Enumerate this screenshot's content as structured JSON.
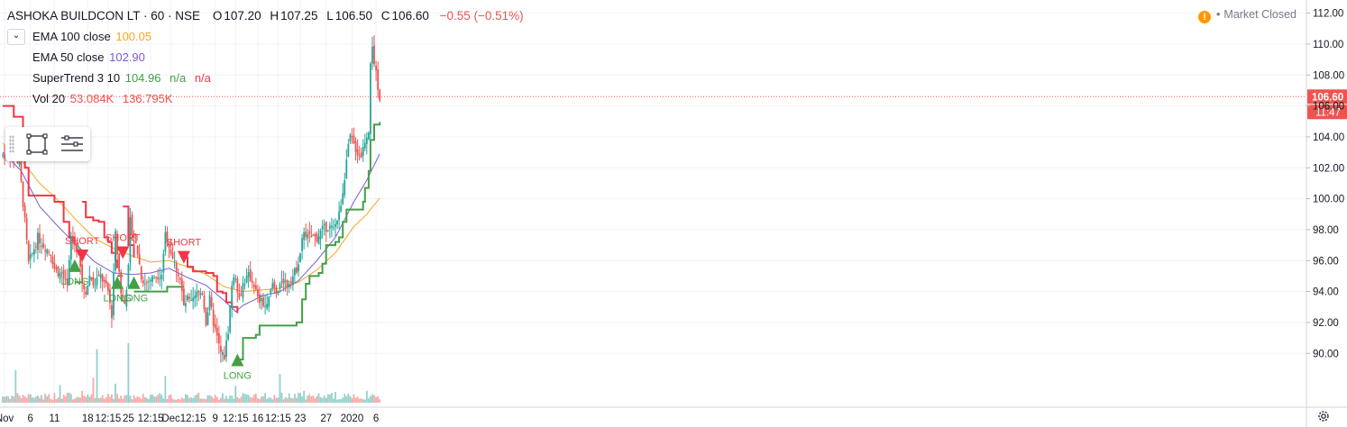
{
  "header": {
    "symbol": "ASHOKA BUILDCON LT · 60 · NSE",
    "open_label": "O",
    "open": "107.20",
    "high_label": "H",
    "high": "107.25",
    "low_label": "L",
    "low": "106.50",
    "close_label": "C",
    "close": "106.60",
    "change": "−0.55 (−0.51%)"
  },
  "indicators": {
    "ema100": {
      "label": "EMA 100 close",
      "value": "100.05",
      "color": "#f5a623"
    },
    "ema50": {
      "label": "EMA 50 close",
      "value": "102.90",
      "color": "#7b5bd6"
    },
    "supertrend": {
      "label": "SuperTrend 3 10",
      "value": "104.96",
      "na1": "n/a",
      "na2": "n/a",
      "color_up": "#43a047",
      "color_down": "#f23645"
    },
    "volume": {
      "label": "Vol 20",
      "value": "53.084K",
      "ma": "136.795K",
      "color_up": "#26a69a",
      "color_down": "#ef5350"
    }
  },
  "status": {
    "warning_icon": "!",
    "separator": "•",
    "text": "Market Closed"
  },
  "price_scale": {
    "last_price": "106.60",
    "countdown": "11:47",
    "colors": {
      "up": "#26a69a",
      "down": "#ef5350",
      "last": "#ef5350"
    }
  },
  "icons": {
    "collapse": "chevron-down-icon",
    "rect_tool": "rectangle-icon",
    "lines_tool": "menu-lines-icon",
    "settings": "gear-icon",
    "warning": "warning-icon"
  },
  "chart_data": {
    "type": "candlestick",
    "title": "ASHOKA BUILDCON LT · 60 · NSE",
    "ylim": [
      88.5,
      112.5
    ],
    "y_ticks": [
      {
        "value": 90,
        "label": "90.00"
      },
      {
        "value": 92,
        "label": "92.00"
      },
      {
        "value": 94,
        "label": "94.00"
      },
      {
        "value": 96,
        "label": "96.00"
      },
      {
        "value": 98,
        "label": "98.00"
      },
      {
        "value": 100,
        "label": "100.00"
      },
      {
        "value": 102,
        "label": "102.00"
      },
      {
        "value": 104,
        "label": "104.00"
      },
      {
        "value": 106,
        "label": "106.00"
      },
      {
        "value": 108,
        "label": "108.00"
      },
      {
        "value": 110,
        "label": "110.00"
      },
      {
        "value": 112,
        "label": "112.00"
      }
    ],
    "x_ticks": [
      {
        "bar": 1,
        "label": "Nov"
      },
      {
        "bar": 15,
        "label": "6"
      },
      {
        "bar": 28,
        "label": "11"
      },
      {
        "bar": 46,
        "label": "18"
      },
      {
        "bar": 57,
        "label": "12:15"
      },
      {
        "bar": 68,
        "label": "25"
      },
      {
        "bar": 80,
        "label": "12:15"
      },
      {
        "bar": 91,
        "label": "Dec"
      },
      {
        "bar": 103,
        "label": "12:15"
      },
      {
        "bar": 115,
        "label": "9"
      },
      {
        "bar": 126,
        "label": "12:15"
      },
      {
        "bar": 138,
        "label": "16"
      },
      {
        "bar": 149,
        "label": "12:15"
      },
      {
        "bar": 161,
        "label": "23"
      },
      {
        "bar": 175,
        "label": "27"
      },
      {
        "bar": 189,
        "label": "2020"
      },
      {
        "bar": 202,
        "label": "6"
      }
    ],
    "price_anchors": [
      [
        0,
        102.8
      ],
      [
        5,
        103.0
      ],
      [
        9,
        102.2
      ],
      [
        12,
        98.5
      ],
      [
        14,
        95.8
      ],
      [
        17,
        96.8
      ],
      [
        19,
        97.5
      ],
      [
        22,
        97.0
      ],
      [
        26,
        96.5
      ],
      [
        28,
        95.5
      ],
      [
        32,
        95.0
      ],
      [
        35,
        94.2
      ],
      [
        37,
        97.5
      ],
      [
        39,
        97.0
      ],
      [
        41,
        96.5
      ],
      [
        43,
        94.5
      ],
      [
        45,
        94.0
      ],
      [
        47,
        95.0
      ],
      [
        50,
        94.5
      ],
      [
        53,
        95.0
      ],
      [
        57,
        94.0
      ],
      [
        59,
        92.5
      ],
      [
        61,
        98.0
      ],
      [
        62,
        96.5
      ],
      [
        64,
        94.0
      ],
      [
        66,
        93.2
      ],
      [
        68,
        95.5
      ],
      [
        69,
        98.5
      ],
      [
        71,
        97.5
      ],
      [
        73,
        96.5
      ],
      [
        75,
        95.0
      ],
      [
        77,
        94.5
      ],
      [
        80,
        94.8
      ],
      [
        83,
        95.0
      ],
      [
        86,
        95.2
      ],
      [
        88,
        97.8
      ],
      [
        90,
        97.0
      ],
      [
        92,
        96.2
      ],
      [
        94,
        95.5
      ],
      [
        96,
        94.8
      ],
      [
        98,
        93.0
      ],
      [
        100,
        93.5
      ],
      [
        102,
        93.2
      ],
      [
        105,
        93.8
      ],
      [
        108,
        94.0
      ],
      [
        110,
        92.0
      ],
      [
        112,
        93.5
      ],
      [
        114,
        92.0
      ],
      [
        116,
        91.0
      ],
      [
        118,
        90.0
      ],
      [
        120,
        89.8
      ],
      [
        122,
        91.5
      ],
      [
        124,
        94.5
      ],
      [
        126,
        95.0
      ],
      [
        128,
        93.5
      ],
      [
        130,
        94.5
      ],
      [
        133,
        95.0
      ],
      [
        136,
        94.5
      ],
      [
        138,
        93.5
      ],
      [
        141,
        93.2
      ],
      [
        143,
        93.0
      ],
      [
        146,
        94.5
      ],
      [
        148,
        94.0
      ],
      [
        151,
        94.8
      ],
      [
        154,
        94.5
      ],
      [
        157,
        95.0
      ],
      [
        159,
        95.5
      ],
      [
        161,
        96.5
      ],
      [
        163,
        98.0
      ],
      [
        165,
        97.5
      ],
      [
        168,
        97.5
      ],
      [
        170,
        97.5
      ],
      [
        173,
        98.0
      ],
      [
        176,
        98.2
      ],
      [
        179,
        98.0
      ],
      [
        182,
        99.0
      ],
      [
        184,
        100.5
      ],
      [
        186,
        102.5
      ],
      [
        188,
        104.0
      ],
      [
        190,
        103.5
      ],
      [
        192,
        103.0
      ],
      [
        194,
        102.8
      ],
      [
        196,
        103.8
      ],
      [
        198,
        104.5
      ],
      [
        199,
        109.0
      ],
      [
        200,
        110.0
      ],
      [
        201,
        108.5
      ],
      [
        202,
        108.0
      ],
      [
        203,
        107.0
      ],
      [
        204,
        106.6
      ]
    ],
    "annotations": [
      {
        "bar": 39,
        "type": "long",
        "price": 96.2
      },
      {
        "bar": 43,
        "type": "short",
        "price": 96.6
      },
      {
        "bar": 62,
        "type": "long",
        "price": 95.1
      },
      {
        "bar": 65,
        "type": "short",
        "price": 96.8
      },
      {
        "bar": 71,
        "type": "long",
        "price": 95.1
      },
      {
        "bar": 98,
        "type": "short",
        "price": 96.5
      },
      {
        "bar": 127,
        "type": "long",
        "price": 90.1
      }
    ],
    "annotation_labels": {
      "long": "LONG",
      "short": "SHORT"
    },
    "supertrend_segments": [
      {
        "dir": "down",
        "points": [
          [
            0,
            106.0
          ],
          [
            4,
            106.0
          ],
          [
            6,
            105.3
          ],
          [
            9,
            105.3
          ],
          [
            11,
            104.0
          ],
          [
            12,
            102.0
          ],
          [
            14,
            100.2
          ],
          [
            22,
            100.2
          ],
          [
            28,
            99.8
          ],
          [
            33,
            98.5
          ],
          [
            36,
            97.5
          ],
          [
            39,
            97.0
          ]
        ]
      },
      {
        "dir": "up",
        "points": [
          [
            39,
            94.6
          ],
          [
            43,
            94.6
          ]
        ]
      },
      {
        "dir": "down",
        "points": [
          [
            43,
            99.8
          ],
          [
            45,
            98.8
          ],
          [
            49,
            98.6
          ],
          [
            52,
            98.5
          ],
          [
            55,
            97.5
          ],
          [
            57,
            97.2
          ],
          [
            59,
            96.5
          ],
          [
            61,
            96.0
          ],
          [
            62,
            95.5
          ]
        ]
      },
      {
        "dir": "up",
        "points": [
          [
            62,
            95.0
          ],
          [
            65,
            95.0
          ]
        ]
      },
      {
        "dir": "down",
        "points": [
          [
            65,
            99.5
          ],
          [
            68,
            97.0
          ],
          [
            71,
            96.2
          ]
        ]
      },
      {
        "dir": "up",
        "points": [
          [
            71,
            94.0
          ],
          [
            78,
            94.0
          ],
          [
            86,
            94.0
          ],
          [
            89,
            94.3
          ],
          [
            98,
            94.3
          ]
        ]
      },
      {
        "dir": "down",
        "points": [
          [
            98,
            96.2
          ],
          [
            100,
            95.6
          ],
          [
            103,
            95.3
          ],
          [
            110,
            95.2
          ],
          [
            114,
            95.0
          ],
          [
            116,
            94.0
          ],
          [
            119,
            93.9
          ],
          [
            121,
            93.3
          ],
          [
            124,
            93.0
          ],
          [
            127,
            92.6
          ]
        ]
      },
      {
        "dir": "up",
        "points": [
          [
            127,
            89.6
          ],
          [
            130,
            91.0
          ],
          [
            134,
            91.0
          ],
          [
            137,
            91.2
          ],
          [
            139,
            91.8
          ],
          [
            145,
            91.8
          ],
          [
            157,
            91.8
          ],
          [
            159,
            92.0
          ],
          [
            162,
            93.5
          ],
          [
            164,
            94.5
          ],
          [
            166,
            95.0
          ],
          [
            171,
            95.2
          ],
          [
            173,
            95.8
          ],
          [
            175,
            97.0
          ],
          [
            180,
            97.2
          ],
          [
            182,
            97.5
          ],
          [
            184,
            98.5
          ],
          [
            186,
            99.3
          ],
          [
            193,
            99.3
          ],
          [
            195,
            99.8
          ],
          [
            196,
            100.7
          ],
          [
            198,
            101.8
          ],
          [
            199,
            103.8
          ],
          [
            201,
            104.8
          ],
          [
            204,
            104.96
          ]
        ]
      }
    ],
    "ema50_anchors": [
      [
        0,
        103.0
      ],
      [
        10,
        101.8
      ],
      [
        20,
        99.5
      ],
      [
        30,
        98.2
      ],
      [
        40,
        97.0
      ],
      [
        50,
        95.9
      ],
      [
        60,
        95.2
      ],
      [
        70,
        95.1
      ],
      [
        80,
        95.2
      ],
      [
        90,
        95.5
      ],
      [
        100,
        94.9
      ],
      [
        110,
        94.4
      ],
      [
        120,
        93.4
      ],
      [
        126,
        92.7
      ],
      [
        130,
        93.1
      ],
      [
        140,
        93.7
      ],
      [
        150,
        94.0
      ],
      [
        160,
        94.7
      ],
      [
        170,
        96.0
      ],
      [
        180,
        97.5
      ],
      [
        190,
        99.8
      ],
      [
        197,
        101.2
      ],
      [
        204,
        102.9
      ]
    ],
    "ema100_anchors": [
      [
        0,
        103.6
      ],
      [
        10,
        102.5
      ],
      [
        20,
        101.0
      ],
      [
        30,
        99.9
      ],
      [
        40,
        98.6
      ],
      [
        50,
        97.4
      ],
      [
        60,
        96.8
      ],
      [
        70,
        96.3
      ],
      [
        80,
        95.9
      ],
      [
        90,
        96.0
      ],
      [
        100,
        95.6
      ],
      [
        110,
        95.1
      ],
      [
        120,
        94.3
      ],
      [
        130,
        94.0
      ],
      [
        140,
        94.1
      ],
      [
        150,
        94.2
      ],
      [
        160,
        94.6
      ],
      [
        170,
        95.4
      ],
      [
        180,
        96.5
      ],
      [
        190,
        98.2
      ],
      [
        197,
        99.0
      ],
      [
        204,
        100.05
      ]
    ],
    "volume_spikes": [
      [
        7,
        0.55
      ],
      [
        31,
        0.3
      ],
      [
        43,
        0.2
      ],
      [
        49,
        0.42
      ],
      [
        51,
        0.9
      ],
      [
        61,
        0.32
      ],
      [
        68,
        1.0
      ],
      [
        88,
        0.45
      ],
      [
        126,
        0.28
      ],
      [
        150,
        0.48
      ],
      [
        163,
        0.2
      ],
      [
        180,
        0.18
      ],
      [
        197,
        0.2
      ]
    ]
  }
}
